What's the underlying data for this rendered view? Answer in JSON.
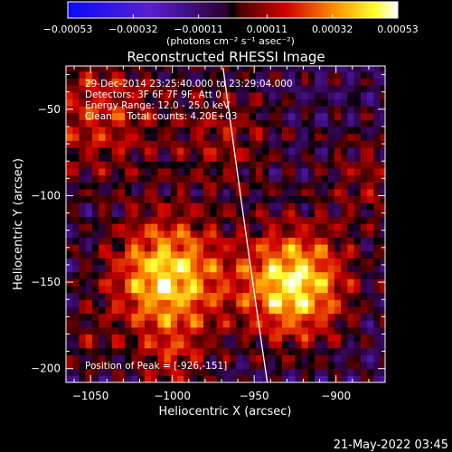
{
  "chart_data": {
    "type": "heatmap",
    "title": "Reconstructed RHESSI Image",
    "xlabel": "Heliocentric X (arcsec)",
    "ylabel": "Heliocentric Y (arcsec)",
    "xlim": [
      -1065,
      -870
    ],
    "ylim": [
      -208,
      -25
    ],
    "x_ticks": [
      {
        "value": -1050,
        "label": "−1050"
      },
      {
        "value": -1000,
        "label": "−1000"
      },
      {
        "value": -950,
        "label": "−950"
      },
      {
        "value": -900,
        "label": "−900"
      }
    ],
    "y_ticks": [
      {
        "value": -50,
        "label": "−50"
      },
      {
        "value": -100,
        "label": "−100"
      },
      {
        "value": -150,
        "label": "−150"
      },
      {
        "value": -200,
        "label": "−200"
      }
    ],
    "colorbar": {
      "min": -0.00053,
      "max": 0.00053,
      "ticks": [
        {
          "value": -0.00053,
          "label": "−0.00053"
        },
        {
          "value": -0.00032,
          "label": "−0.00032"
        },
        {
          "value": -0.00011,
          "label": "−0.00011"
        },
        {
          "value": 0.00011,
          "label": "0.00011"
        },
        {
          "value": 0.00032,
          "label": "0.00032"
        },
        {
          "value": 0.00053,
          "label": "0.00053"
        }
      ],
      "units_label": "(photons cm⁻² s⁻¹ asec⁻²)"
    },
    "info_lines": [
      "29-Dec-2014 23:25:40.000 to 23:29:04.000",
      "Detectors: 3F 6F 7F 9F, Att 0",
      "Energy Range: 12.0 - 25.0 keV",
      "Clean     Total counts: 4.20E+03"
    ],
    "peak_label": "Position of Peak = [-926,-151]",
    "peak_position": [
      -926,
      -151
    ],
    "intensity_sources": [
      {
        "x": -1003,
        "y": -147,
        "sigma": 24,
        "amp": 0.0005
      },
      {
        "x": -926,
        "y": -151,
        "sigma": 22,
        "amp": 0.00053
      },
      {
        "x": -1045,
        "y": -52,
        "sigma": 26,
        "amp": 0.00024
      },
      {
        "x": -968,
        "y": -66,
        "sigma": 22,
        "amp": 0.00016
      },
      {
        "x": -1000,
        "y": -195,
        "sigma": 14,
        "amp": 0.00016
      },
      {
        "x": -880,
        "y": -90,
        "sigma": 20,
        "amp": 0.00014
      },
      {
        "x": -1055,
        "y": -185,
        "sigma": 14,
        "amp": 0.0001
      }
    ],
    "limb_curve": [
      [
        -969,
        -26
      ],
      [
        -957,
        -111
      ],
      [
        -942,
        -208
      ]
    ]
  },
  "timestamp": "21-May-2022 03:45"
}
